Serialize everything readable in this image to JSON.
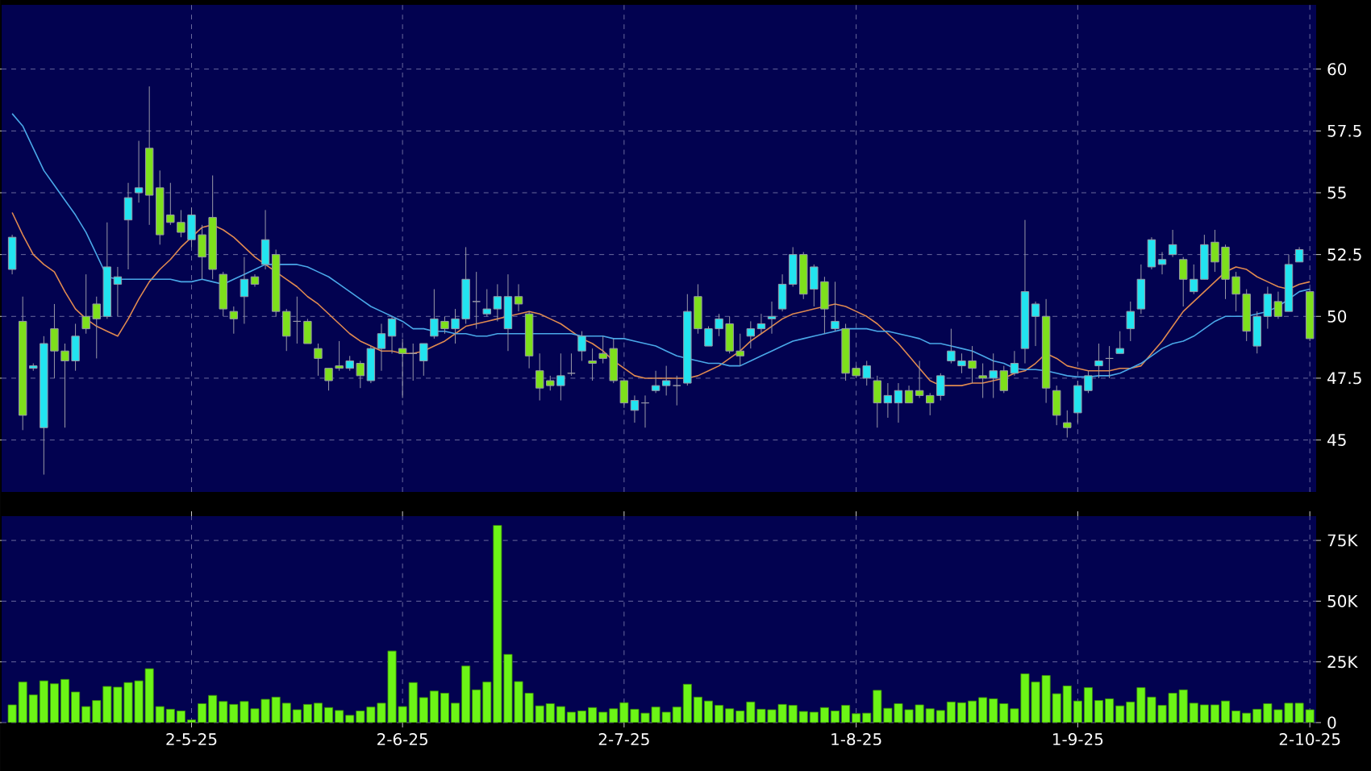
{
  "chart_data": [
    {
      "type": "candlestick",
      "categories": [
        null,
        null,
        null,
        null,
        null,
        null,
        null,
        null,
        null,
        null,
        null,
        null,
        null,
        null,
        null,
        null,
        null,
        null,
        null,
        null,
        null,
        null,
        null,
        null,
        null,
        null,
        null,
        null,
        null,
        null,
        null,
        null,
        null,
        null,
        null,
        null,
        null,
        null,
        null,
        null,
        null,
        null,
        null,
        null,
        null,
        null,
        null,
        null,
        null,
        null,
        null,
        null,
        null,
        null,
        null,
        null,
        null,
        null,
        null,
        null,
        null,
        null,
        null,
        null,
        null,
        null,
        null,
        null,
        null,
        null,
        null,
        null,
        null,
        null,
        null,
        null,
        null,
        null,
        null,
        null,
        null,
        null,
        null,
        null,
        null,
        null,
        null,
        null,
        null,
        null,
        null,
        null,
        null,
        null,
        null,
        null,
        null,
        null,
        null,
        null,
        null,
        null,
        null,
        null,
        null,
        null,
        null,
        null,
        null,
        null,
        null,
        null,
        null,
        null,
        null,
        null,
        null,
        null,
        null,
        null,
        null,
        null,
        null,
        null
      ],
      "ohlc": [
        [
          51.9,
          53.3,
          51.7,
          53.2
        ],
        [
          49.8,
          50.8,
          45.4,
          46.0
        ],
        [
          47.9,
          48.1,
          47.8,
          48.0
        ],
        [
          45.5,
          49.2,
          43.6,
          48.9
        ],
        [
          49.5,
          50.5,
          47.5,
          48.6
        ],
        [
          48.6,
          48.9,
          45.5,
          48.2
        ],
        [
          48.2,
          49.7,
          47.8,
          49.2
        ],
        [
          50.0,
          51.7,
          49.3,
          49.5
        ],
        [
          50.5,
          50.8,
          48.3,
          49.9
        ],
        [
          50.0,
          53.8,
          49.9,
          52.0
        ],
        [
          51.3,
          52.0,
          50.0,
          51.6
        ],
        [
          53.9,
          55.4,
          51.9,
          54.8
        ],
        [
          55.0,
          57.1,
          54.6,
          55.2
        ],
        [
          56.8,
          59.3,
          53.7,
          54.9
        ],
        [
          55.2,
          55.9,
          52.9,
          53.3
        ],
        [
          54.1,
          55.4,
          53.7,
          53.8
        ],
        [
          53.8,
          54.3,
          53.2,
          53.4
        ],
        [
          53.1,
          54.4,
          52.8,
          54.1
        ],
        [
          53.3,
          53.7,
          51.5,
          52.4
        ],
        [
          54.0,
          55.7,
          51.5,
          51.9
        ],
        [
          51.7,
          51.8,
          50.0,
          50.3
        ],
        [
          50.2,
          50.4,
          49.3,
          49.9
        ],
        [
          50.8,
          52.4,
          49.7,
          51.5
        ],
        [
          51.6,
          51.7,
          51.2,
          51.3
        ],
        [
          52.1,
          54.3,
          51.9,
          53.1
        ],
        [
          52.5,
          52.7,
          50.0,
          50.2
        ],
        [
          50.2,
          50.3,
          48.6,
          49.2
        ],
        [
          49.8,
          50.8,
          48.9,
          49.8
        ],
        [
          49.8,
          49.9,
          48.9,
          48.9
        ],
        [
          48.7,
          48.9,
          47.6,
          48.3
        ],
        [
          47.9,
          47.9,
          47.0,
          47.4
        ],
        [
          48.0,
          49.0,
          47.8,
          47.9
        ],
        [
          47.9,
          48.4,
          47.8,
          48.2
        ],
        [
          48.1,
          48.2,
          47.1,
          47.6
        ],
        [
          47.4,
          48.8,
          47.3,
          48.7
        ],
        [
          48.7,
          49.7,
          47.8,
          49.3
        ],
        [
          49.2,
          50.0,
          48.5,
          49.9
        ],
        [
          48.7,
          49.1,
          46.7,
          48.5
        ],
        [
          48.5,
          48.9,
          47.4,
          48.5
        ],
        [
          48.2,
          48.9,
          47.6,
          48.9
        ],
        [
          49.2,
          51.1,
          49.1,
          49.9
        ],
        [
          49.8,
          50.0,
          49.3,
          49.5
        ],
        [
          49.5,
          50.3,
          48.9,
          49.9
        ],
        [
          49.9,
          52.8,
          49.7,
          51.5
        ],
        [
          50.6,
          51.8,
          49.5,
          50.6
        ],
        [
          50.1,
          51.1,
          50.0,
          50.3
        ],
        [
          50.3,
          51.3,
          49.8,
          50.8
        ],
        [
          49.5,
          51.7,
          48.6,
          50.8
        ],
        [
          50.8,
          51.3,
          50.2,
          50.5
        ],
        [
          50.1,
          50.2,
          47.9,
          48.4
        ],
        [
          47.8,
          48.5,
          46.6,
          47.1
        ],
        [
          47.4,
          47.6,
          47.0,
          47.2
        ],
        [
          47.2,
          48.5,
          46.6,
          47.6
        ],
        [
          47.7,
          48.5,
          47.6,
          47.7
        ],
        [
          48.6,
          49.4,
          48.2,
          49.2
        ],
        [
          48.2,
          48.7,
          47.4,
          48.1
        ],
        [
          48.5,
          49.2,
          48.1,
          48.3
        ],
        [
          48.7,
          49.1,
          47.3,
          47.4
        ],
        [
          47.4,
          47.5,
          46.3,
          46.5
        ],
        [
          46.2,
          46.8,
          45.7,
          46.6
        ],
        [
          46.5,
          46.8,
          45.5,
          46.5
        ],
        [
          47.0,
          47.8,
          46.9,
          47.2
        ],
        [
          47.2,
          48.0,
          46.8,
          47.4
        ],
        [
          47.2,
          47.6,
          46.4,
          47.2
        ],
        [
          47.3,
          50.9,
          47.2,
          50.2
        ],
        [
          50.8,
          51.3,
          49.3,
          49.5
        ],
        [
          48.8,
          49.6,
          48.8,
          49.5
        ],
        [
          49.5,
          50.1,
          49.2,
          49.9
        ],
        [
          49.7,
          50.0,
          48.5,
          48.6
        ],
        [
          48.6,
          49.3,
          48.0,
          48.4
        ],
        [
          49.2,
          49.8,
          48.7,
          49.5
        ],
        [
          49.5,
          50.1,
          49.3,
          49.7
        ],
        [
          49.9,
          50.6,
          49.3,
          50.0
        ],
        [
          50.3,
          51.7,
          50.2,
          51.3
        ],
        [
          51.3,
          52.8,
          51.2,
          52.5
        ],
        [
          52.5,
          52.6,
          50.7,
          50.9
        ],
        [
          51.1,
          52.1,
          50.4,
          52.0
        ],
        [
          51.4,
          51.6,
          49.3,
          50.3
        ],
        [
          49.5,
          51.4,
          49.4,
          49.8
        ],
        [
          49.5,
          49.7,
          47.4,
          47.7
        ],
        [
          47.9,
          48.0,
          47.5,
          47.6
        ],
        [
          47.5,
          48.2,
          47.2,
          48.0
        ],
        [
          47.4,
          47.6,
          45.5,
          46.5
        ],
        [
          46.5,
          47.3,
          45.9,
          46.8
        ],
        [
          46.5,
          47.3,
          45.7,
          47.0
        ],
        [
          47.0,
          47.2,
          46.5,
          46.5
        ],
        [
          47.0,
          48.2,
          46.7,
          46.8
        ],
        [
          46.8,
          46.9,
          46.0,
          46.5
        ],
        [
          46.8,
          47.7,
          46.6,
          47.6
        ],
        [
          48.2,
          49.5,
          48.1,
          48.6
        ],
        [
          48.0,
          48.5,
          47.7,
          48.2
        ],
        [
          48.2,
          48.8,
          47.3,
          47.9
        ],
        [
          47.6,
          48.1,
          46.7,
          47.5
        ],
        [
          47.5,
          48.5,
          46.7,
          47.8
        ],
        [
          47.8,
          48.0,
          46.9,
          47.0
        ],
        [
          47.7,
          48.6,
          47.6,
          48.1
        ],
        [
          48.7,
          53.9,
          48.1,
          51.0
        ],
        [
          50.0,
          50.6,
          48.8,
          50.5
        ],
        [
          50.0,
          50.7,
          46.5,
          47.1
        ],
        [
          47.0,
          47.2,
          45.6,
          46.0
        ],
        [
          45.7,
          46.2,
          45.1,
          45.5
        ],
        [
          46.1,
          47.4,
          45.7,
          47.2
        ],
        [
          47.0,
          47.8,
          46.9,
          47.6
        ],
        [
          48.0,
          48.9,
          47.5,
          48.2
        ],
        [
          48.3,
          48.8,
          47.5,
          48.3
        ],
        [
          48.5,
          49.4,
          48.5,
          48.7
        ],
        [
          49.5,
          50.6,
          49.0,
          50.2
        ],
        [
          50.3,
          52.1,
          50.1,
          51.5
        ],
        [
          52.0,
          53.2,
          51.9,
          53.1
        ],
        [
          52.1,
          52.6,
          51.7,
          52.3
        ],
        [
          52.5,
          53.5,
          52.4,
          52.9
        ],
        [
          52.3,
          52.4,
          50.4,
          51.5
        ],
        [
          51.0,
          52.1,
          50.9,
          51.5
        ],
        [
          51.5,
          53.3,
          51.5,
          52.9
        ],
        [
          53.0,
          53.5,
          51.8,
          52.2
        ],
        [
          52.8,
          52.9,
          50.7,
          51.5
        ],
        [
          51.6,
          51.8,
          50.2,
          50.9
        ],
        [
          50.9,
          51.1,
          49.0,
          49.4
        ],
        [
          48.8,
          50.2,
          48.5,
          50.0
        ],
        [
          50.0,
          51.2,
          49.5,
          50.9
        ],
        [
          50.6,
          51.0,
          49.9,
          50.0
        ],
        [
          50.2,
          52.5,
          50.2,
          52.1
        ],
        [
          52.2,
          52.8,
          52.2,
          52.7
        ],
        [
          51.0,
          51.1,
          49.0,
          49.1
        ]
      ],
      "colors": [
        "#22e4f0",
        "#7ee01c",
        "#22e4f0",
        "#22e4f0",
        "#7ee01c",
        "#7ee01c",
        "#22e4f0",
        "#7ee01c",
        "#7ee01c",
        "#22e4f0",
        "#22e4f0",
        "#22e4f0",
        "#22e4f0",
        "#7ee01c",
        "#7ee01c",
        "#7ee01c",
        "#7ee01c",
        "#22e4f0",
        "#7ee01c",
        "#7ee01c",
        "#7ee01c",
        "#7ee01c",
        "#22e4f0",
        "#7ee01c",
        "#22e4f0",
        "#7ee01c",
        "#7ee01c",
        "#a0a0a0",
        "#7ee01c",
        "#7ee01c",
        "#7ee01c",
        "#7ee01c",
        "#22e4f0",
        "#7ee01c",
        "#22e4f0",
        "#22e4f0",
        "#22e4f0",
        "#7ee01c",
        "#a0a0a0",
        "#22e4f0",
        "#22e4f0",
        "#7ee01c",
        "#22e4f0",
        "#22e4f0",
        "#a0a0a0",
        "#22e4f0",
        "#22e4f0",
        "#22e4f0",
        "#7ee01c",
        "#7ee01c",
        "#7ee01c",
        "#7ee01c",
        "#22e4f0",
        "#a0a0a0",
        "#22e4f0",
        "#7ee01c",
        "#7ee01c",
        "#7ee01c",
        "#7ee01c",
        "#22e4f0",
        "#a0a0a0",
        "#22e4f0",
        "#22e4f0",
        "#a0a0a0",
        "#22e4f0",
        "#7ee01c",
        "#22e4f0",
        "#22e4f0",
        "#7ee01c",
        "#7ee01c",
        "#22e4f0",
        "#22e4f0",
        "#22e4f0",
        "#22e4f0",
        "#22e4f0",
        "#7ee01c",
        "#22e4f0",
        "#7ee01c",
        "#22e4f0",
        "#7ee01c",
        "#7ee01c",
        "#22e4f0",
        "#7ee01c",
        "#22e4f0",
        "#22e4f0",
        "#7ee01c",
        "#7ee01c",
        "#7ee01c",
        "#22e4f0",
        "#22e4f0",
        "#22e4f0",
        "#7ee01c",
        "#7ee01c",
        "#22e4f0",
        "#7ee01c",
        "#22e4f0",
        "#22e4f0",
        "#22e4f0",
        "#7ee01c",
        "#7ee01c",
        "#7ee01c",
        "#22e4f0",
        "#22e4f0",
        "#22e4f0",
        "#a0a0a0",
        "#22e4f0",
        "#22e4f0",
        "#22e4f0",
        "#22e4f0",
        "#22e4f0",
        "#22e4f0",
        "#7ee01c",
        "#22e4f0",
        "#22e4f0",
        "#7ee01c",
        "#7ee01c",
        "#7ee01c",
        "#7ee01c",
        "#22e4f0",
        "#22e4f0",
        "#7ee01c",
        "#22e4f0",
        "#22e4f0",
        "#7ee01c"
      ],
      "series": [
        {
          "type": "line",
          "color": "#e08a50",
          "values": [
            54.2,
            53.3,
            52.5,
            52.1,
            51.8,
            51.0,
            50.3,
            49.9,
            49.6,
            49.4,
            49.2,
            49.9,
            50.7,
            51.4,
            51.9,
            52.3,
            52.8,
            53.2,
            53.6,
            53.7,
            53.5,
            53.2,
            52.8,
            52.4,
            52.1,
            51.8,
            51.5,
            51.2,
            50.8,
            50.5,
            50.1,
            49.7,
            49.3,
            49.0,
            48.8,
            48.6,
            48.6,
            48.5,
            48.5,
            48.6,
            48.8,
            49.0,
            49.3,
            49.6,
            49.7,
            49.8,
            49.9,
            50.0,
            50.1,
            50.2,
            50.1,
            49.9,
            49.7,
            49.4,
            49.1,
            48.9,
            48.6,
            48.2,
            47.9,
            47.6,
            47.5,
            47.5,
            47.5,
            47.5,
            47.5,
            47.6,
            47.8,
            48.0,
            48.3,
            48.6,
            49.0,
            49.3,
            49.6,
            49.9,
            50.1,
            50.2,
            50.3,
            50.4,
            50.5,
            50.4,
            50.2,
            50.0,
            49.7,
            49.3,
            48.9,
            48.4,
            47.9,
            47.4,
            47.2,
            47.2,
            47.2,
            47.3,
            47.3,
            47.4,
            47.5,
            47.7,
            47.8,
            48.1,
            48.5,
            48.3,
            48.0,
            47.9,
            47.8,
            47.8,
            47.8,
            47.9,
            47.9,
            48.0,
            48.5,
            49.0,
            49.6,
            50.2,
            50.6,
            51.0,
            51.4,
            51.8,
            52.0,
            51.9,
            51.6,
            51.4,
            51.2,
            51.1,
            51.3,
            51.4
          ]
        },
        {
          "type": "line",
          "color": "#4aa8e8",
          "values": [
            58.2,
            57.7,
            56.8,
            55.9,
            55.3,
            54.7,
            54.1,
            53.4,
            52.5,
            51.6,
            51.5,
            51.5,
            51.5,
            51.5,
            51.5,
            51.5,
            51.4,
            51.4,
            51.5,
            51.4,
            51.3,
            51.5,
            51.7,
            51.9,
            52.1,
            52.1,
            52.1,
            52.1,
            52.0,
            51.8,
            51.6,
            51.3,
            51.0,
            50.7,
            50.4,
            50.2,
            50.0,
            49.8,
            49.5,
            49.5,
            49.4,
            49.4,
            49.3,
            49.3,
            49.2,
            49.2,
            49.3,
            49.3,
            49.3,
            49.3,
            49.3,
            49.3,
            49.3,
            49.3,
            49.2,
            49.2,
            49.2,
            49.1,
            49.1,
            49.0,
            48.9,
            48.8,
            48.6,
            48.4,
            48.3,
            48.2,
            48.1,
            48.1,
            48.0,
            48.0,
            48.2,
            48.4,
            48.6,
            48.8,
            49.0,
            49.1,
            49.2,
            49.3,
            49.4,
            49.5,
            49.5,
            49.5,
            49.4,
            49.4,
            49.3,
            49.2,
            49.1,
            48.9,
            48.9,
            48.8,
            48.7,
            48.6,
            48.4,
            48.2,
            48.1,
            47.9,
            47.85,
            47.85,
            47.8,
            47.7,
            47.6,
            47.55,
            47.55,
            47.6,
            47.6,
            47.7,
            47.9,
            48.1,
            48.4,
            48.7,
            48.9,
            49.0,
            49.2,
            49.5,
            49.8,
            50.0,
            50.0,
            50.0,
            50.1,
            50.2,
            50.4,
            50.7,
            51.0,
            51.1
          ]
        }
      ],
      "ylim": [
        42.9,
        62.6
      ],
      "yticks": [
        45,
        47.5,
        50,
        52.5,
        55,
        57.5,
        60
      ],
      "grid": true,
      "tick_labels": "y"
    },
    {
      "type": "bar",
      "categories": [
        null,
        null,
        null,
        null,
        null,
        null,
        null,
        null,
        null,
        null,
        null,
        null,
        null,
        null,
        null,
        null,
        null,
        "2-5-25",
        null,
        null,
        null,
        null,
        null,
        null,
        null,
        null,
        null,
        null,
        null,
        null,
        null,
        null,
        null,
        null,
        null,
        null,
        null,
        "2-6-25",
        null,
        null,
        null,
        null,
        null,
        null,
        null,
        null,
        null,
        null,
        null,
        null,
        null,
        null,
        null,
        null,
        null,
        null,
        null,
        null,
        "2-7-25",
        null,
        null,
        null,
        null,
        null,
        null,
        null,
        null,
        null,
        null,
        null,
        null,
        null,
        null,
        null,
        null,
        null,
        null,
        null,
        null,
        null,
        "1-8-25",
        null,
        null,
        null,
        null,
        null,
        null,
        null,
        null,
        null,
        null,
        null,
        null,
        null,
        null,
        null,
        null,
        null,
        null,
        null,
        null,
        "1-9-25",
        null,
        null,
        null,
        null,
        null,
        null,
        null,
        null,
        null,
        null,
        null,
        null,
        null,
        null,
        null,
        null,
        null,
        null,
        null,
        null,
        null,
        "2-10-25"
      ],
      "values": [
        7300,
        16700,
        11400,
        17200,
        16000,
        17800,
        12600,
        6600,
        9100,
        14900,
        14600,
        16500,
        17200,
        22200,
        6600,
        5500,
        4800,
        1100,
        7800,
        11200,
        8700,
        7500,
        8700,
        5700,
        9600,
        10500,
        8000,
        5300,
        7500,
        8000,
        6200,
        5000,
        3000,
        4800,
        6400,
        8000,
        29500,
        6600,
        16500,
        10300,
        13000,
        12100,
        8000,
        23300,
        13500,
        16700,
        81200,
        28100,
        16900,
        12100,
        6900,
        7800,
        6600,
        4300,
        4800,
        6200,
        4300,
        5700,
        8200,
        5500,
        3900,
        6400,
        4300,
        6400,
        15800,
        10500,
        8900,
        7100,
        5700,
        4800,
        8500,
        5500,
        5300,
        7500,
        7100,
        4600,
        4300,
        6200,
        4800,
        7100,
        3700,
        3900,
        13300,
        5900,
        7800,
        5300,
        7300,
        5700,
        5000,
        8500,
        8200,
        8900,
        10300,
        9800,
        7800,
        5700,
        20100,
        16700,
        19400,
        11900,
        15100,
        8900,
        14400,
        9100,
        9800,
        6900,
        8500,
        14400,
        10500,
        7100,
        12100,
        13500,
        8000,
        7300,
        7300,
        8900,
        4800,
        3900,
        5500,
        7800,
        5300,
        8000,
        8000,
        5300
      ],
      "color": "#6cf516",
      "ylim": [
        0,
        85000
      ],
      "yticks": [
        0,
        {
          "value": 25000,
          "label": "25K"
        },
        {
          "value": 50000,
          "label": "50K"
        },
        {
          "value": 75000,
          "label": "75K"
        }
      ],
      "grid": true
    }
  ]
}
